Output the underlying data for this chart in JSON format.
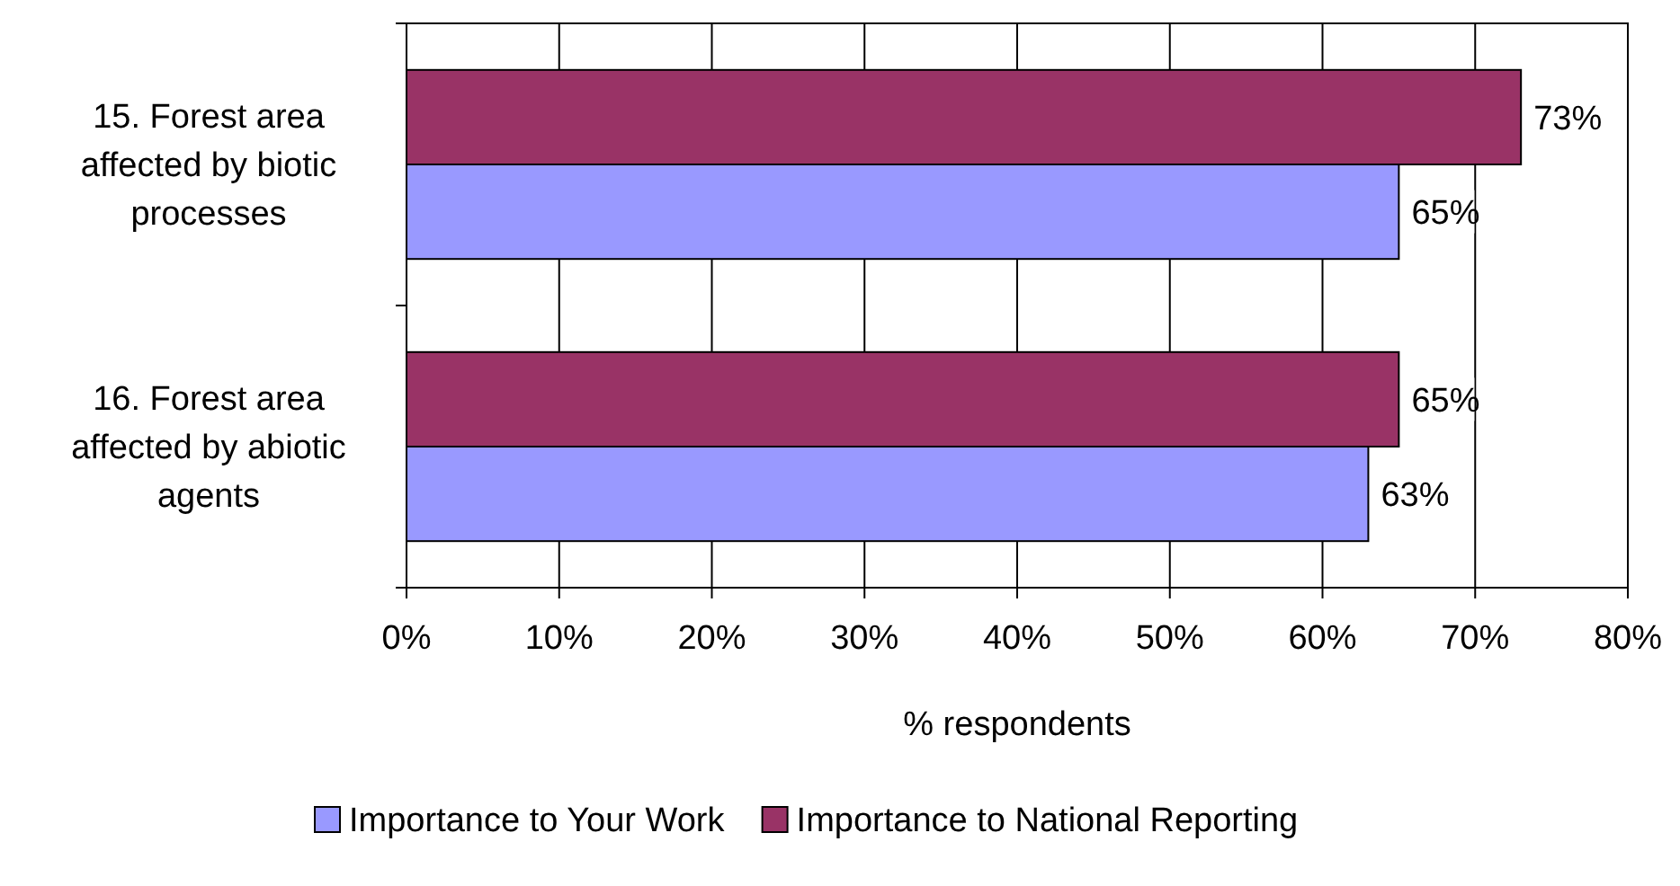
{
  "chart_data": {
    "type": "bar",
    "orientation": "horizontal",
    "xlabel": "% respondents",
    "categories": [
      "15. Forest area affected by biotic processes",
      "16. Forest area affected by abiotic agents"
    ],
    "series": [
      {
        "name": "Importance to Your Work",
        "color": "#9999ff",
        "values": [
          65,
          63
        ],
        "value_labels": [
          "65%",
          "63%"
        ]
      },
      {
        "name": "Importance to National Reporting",
        "color": "#993366",
        "values": [
          73,
          65
        ],
        "value_labels": [
          "73%",
          "65%"
        ]
      }
    ],
    "xlim": [
      0,
      80
    ],
    "xticks": [
      {
        "value": 0,
        "label": "0%"
      },
      {
        "value": 10,
        "label": "10%"
      },
      {
        "value": 20,
        "label": "20%"
      },
      {
        "value": 30,
        "label": "30%"
      },
      {
        "value": 40,
        "label": "40%"
      },
      {
        "value": 50,
        "label": "50%"
      },
      {
        "value": 60,
        "label": "60%"
      },
      {
        "value": 70,
        "label": "70%"
      },
      {
        "value": 80,
        "label": "80%"
      }
    ],
    "grid": "x",
    "legend": "bottom"
  }
}
